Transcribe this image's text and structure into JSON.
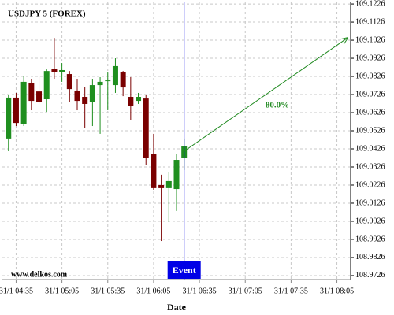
{
  "chart_data": {
    "type": "candlestick",
    "title": "USDJPY 5 (FOREX)",
    "x_label": "Date",
    "watermark": "www.delkos.com",
    "event_label": "Event",
    "event_x": "31/1 06:25",
    "forecast": {
      "label": "80.0%",
      "color": "#228b22",
      "x": [
        "31/1 06:25",
        "31/1 08:12"
      ],
      "y": [
        109.0413,
        109.1039
      ]
    },
    "x": [
      "31/1 04:30",
      "31/1 04:35",
      "31/1 04:40",
      "31/1 04:45",
      "31/1 04:50",
      "31/1 04:55",
      "31/1 05:00",
      "31/1 05:05",
      "31/1 05:10",
      "31/1 05:15",
      "31/1 05:20",
      "31/1 05:25",
      "31/1 05:30",
      "31/1 05:35",
      "31/1 05:40",
      "31/1 05:45",
      "31/1 05:50",
      "31/1 05:55",
      "31/1 06:00",
      "31/1 06:05",
      "31/1 06:10",
      "31/1 06:15",
      "31/1 06:20",
      "31/1 06:25"
    ],
    "open": [
      109.0483,
      109.0709,
      109.0561,
      109.0787,
      109.0743,
      109.07,
      109.0869,
      109.0852,
      109.0839,
      109.0748,
      109.0713,
      109.0683,
      109.0778,
      109.0804,
      109.0778,
      109.0848,
      109.0713,
      109.0691,
      109.0704,
      109.0396,
      109.0226,
      109.0209,
      109.0204,
      109.0378
    ],
    "high": [
      109.0726,
      109.0735,
      109.0826,
      109.0813,
      109.083,
      109.0865,
      109.1039,
      109.09,
      109.0856,
      109.0813,
      109.0769,
      109.0813,
      109.0822,
      109.0848,
      109.0926,
      109.0856,
      109.0822,
      109.0735,
      109.0726,
      109.0509,
      109.0283,
      109.03,
      109.0396,
      109.0483
    ],
    "low": [
      109.0413,
      109.0552,
      109.0552,
      109.0639,
      109.0674,
      109.063,
      109.0813,
      109.0796,
      109.0683,
      109.0639,
      109.0543,
      109.0552,
      109.0509,
      109.0639,
      109.0735,
      109.0717,
      109.0587,
      109.0674,
      109.0335,
      109.02,
      108.9917,
      109.0022,
      109.0083,
      109.0309
    ],
    "close": [
      109.0709,
      109.0569,
      109.0796,
      109.0691,
      109.0683,
      109.0856,
      109.0852,
      109.0861,
      109.0756,
      109.0691,
      109.0674,
      109.0778,
      109.0796,
      109.0804,
      109.0883,
      109.0765,
      109.0661,
      109.0713,
      109.0374,
      109.0209,
      109.0209,
      109.0248,
      109.0365,
      109.0439
    ],
    "up_color": "#1f8f1f",
    "down_color": "#7a0000",
    "event_color": "#0000e6",
    "xlim": [
      "31/1 04:26",
      "31/1 08:14"
    ],
    "xticks": [
      "31/1 04:35",
      "31/1 05:05",
      "31/1 05:35",
      "31/1 06:05",
      "31/1 06:35",
      "31/1 07:05",
      "31/1 07:35",
      "31/1 08:05"
    ],
    "ylim": [
      108.9704,
      109.1235
    ],
    "yticks": [
      109.1226,
      109.1126,
      109.1026,
      109.0926,
      109.0826,
      109.0726,
      109.0626,
      109.0526,
      109.0426,
      109.0326,
      109.0226,
      109.0126,
      109.0026,
      108.9926,
      108.9826,
      108.9726
    ],
    "grid": true
  }
}
